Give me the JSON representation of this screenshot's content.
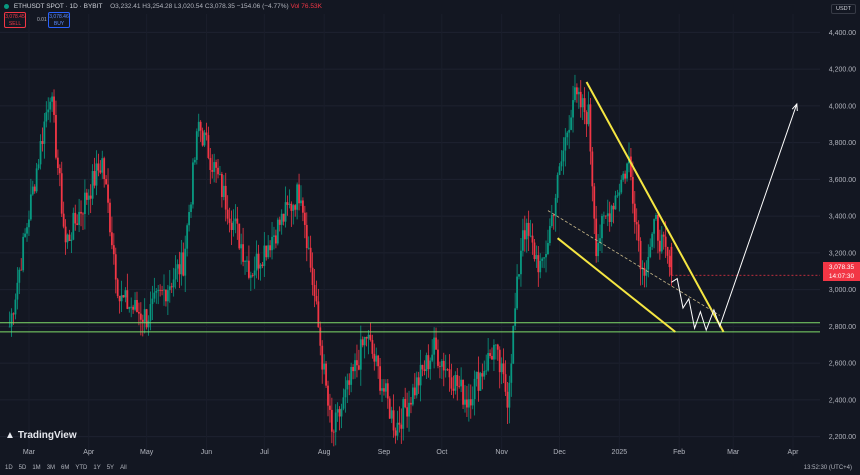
{
  "header": {
    "symbol": "ETHUSDT SPOT · 1D · BYBIT",
    "ohlc": "O3,232.41 H3,254.28 L3,020.54 C3,078.35 −154.06 (−4.77%)",
    "volume": "Vol 76.53K"
  },
  "sell": {
    "price": "3,078.45",
    "label": "SELL"
  },
  "buy": {
    "price": "3,078.46",
    "label": "BUY"
  },
  "spread": "0.01",
  "currency": "USDT",
  "price_tag": {
    "price": "3,078.35",
    "countdown": "14:07:30"
  },
  "ranges": [
    "1D",
    "5D",
    "1M",
    "3M",
    "6M",
    "YTD",
    "1Y",
    "5Y",
    "All"
  ],
  "time_display": "13:52:30 (UTC+4)",
  "logo": "TradingView",
  "colors": {
    "up": "#089981",
    "down": "#f23645",
    "pattern": "#f5e642",
    "support": "#7fdc6a",
    "bg": "#131722"
  },
  "chart_data": {
    "type": "candlestick",
    "symbol": "ETHUSDT",
    "interval": "1D",
    "x_ticks": [
      "Mar",
      "Apr",
      "May",
      "Jun",
      "Jul",
      "Aug",
      "Sep",
      "Oct",
      "Nov",
      "Dec",
      "2025",
      "Feb",
      "Mar",
      "Apr"
    ],
    "y_ticks": [
      2200,
      2400,
      2600,
      2800,
      3000,
      3200,
      3400,
      3600,
      3800,
      4000,
      4200,
      4400
    ],
    "ylim": [
      2100,
      4500
    ],
    "swings": [
      {
        "date": "2024-02-20",
        "close": 2800
      },
      {
        "date": "2024-03-12",
        "close": 4090
      },
      {
        "date": "2024-03-20",
        "close": 3250
      },
      {
        "date": "2024-04-08",
        "close": 3700
      },
      {
        "date": "2024-04-17",
        "close": 2950
      },
      {
        "date": "2024-05-01",
        "close": 2850
      },
      {
        "date": "2024-05-20",
        "close": 3150
      },
      {
        "date": "2024-05-28",
        "close": 3900
      },
      {
        "date": "2024-06-24",
        "close": 3100
      },
      {
        "date": "2024-07-20",
        "close": 3550
      },
      {
        "date": "2024-08-05",
        "close": 2200
      },
      {
        "date": "2024-08-23",
        "close": 2750
      },
      {
        "date": "2024-09-07",
        "close": 2250
      },
      {
        "date": "2024-09-27",
        "close": 2680
      },
      {
        "date": "2024-10-14",
        "close": 2400
      },
      {
        "date": "2024-10-28",
        "close": 2680
      },
      {
        "date": "2024-11-04",
        "close": 2420
      },
      {
        "date": "2024-11-12",
        "close": 3350
      },
      {
        "date": "2024-11-22",
        "close": 3100
      },
      {
        "date": "2024-12-08",
        "close": 4050
      },
      {
        "date": "2024-12-16",
        "close": 3950
      },
      {
        "date": "2024-12-20",
        "close": 3250
      },
      {
        "date": "2025-01-06",
        "close": 3700
      },
      {
        "date": "2025-01-13",
        "close": 3100
      },
      {
        "date": "2025-01-20",
        "close": 3350
      },
      {
        "date": "2025-01-28",
        "close": 3078.35
      }
    ],
    "current": {
      "open": 3232.41,
      "high": 3254.28,
      "low": 3020.54,
      "close": 3078.35,
      "change": -154.06,
      "change_pct": -4.77
    },
    "annotations": {
      "wedge_upper": [
        {
          "date": "2024-12-15",
          "price": 4130
        },
        {
          "date": "2025-02-24",
          "price": 2770
        }
      ],
      "wedge_lower": [
        {
          "date": "2024-11-30",
          "price": 3280
        },
        {
          "date": "2025-01-30",
          "price": 2770
        }
      ],
      "dashed_midline": [
        {
          "date": "2024-11-25",
          "price": 3430
        },
        {
          "date": "2025-02-22",
          "price": 2860
        }
      ],
      "support_lines": [
        2820,
        2770
      ],
      "projection": [
        {
          "date": "2025-01-28",
          "price": 3040
        },
        {
          "date": "2025-01-31",
          "price": 3060
        },
        {
          "date": "2025-02-03",
          "price": 2900
        },
        {
          "date": "2025-02-06",
          "price": 2950
        },
        {
          "date": "2025-02-09",
          "price": 2790
        },
        {
          "date": "2025-02-12",
          "price": 2880
        },
        {
          "date": "2025-02-15",
          "price": 2780
        },
        {
          "date": "2025-02-19",
          "price": 2890
        },
        {
          "date": "2025-02-22",
          "price": 2800
        },
        {
          "date": "2025-04-03",
          "price": 4010
        }
      ]
    }
  }
}
